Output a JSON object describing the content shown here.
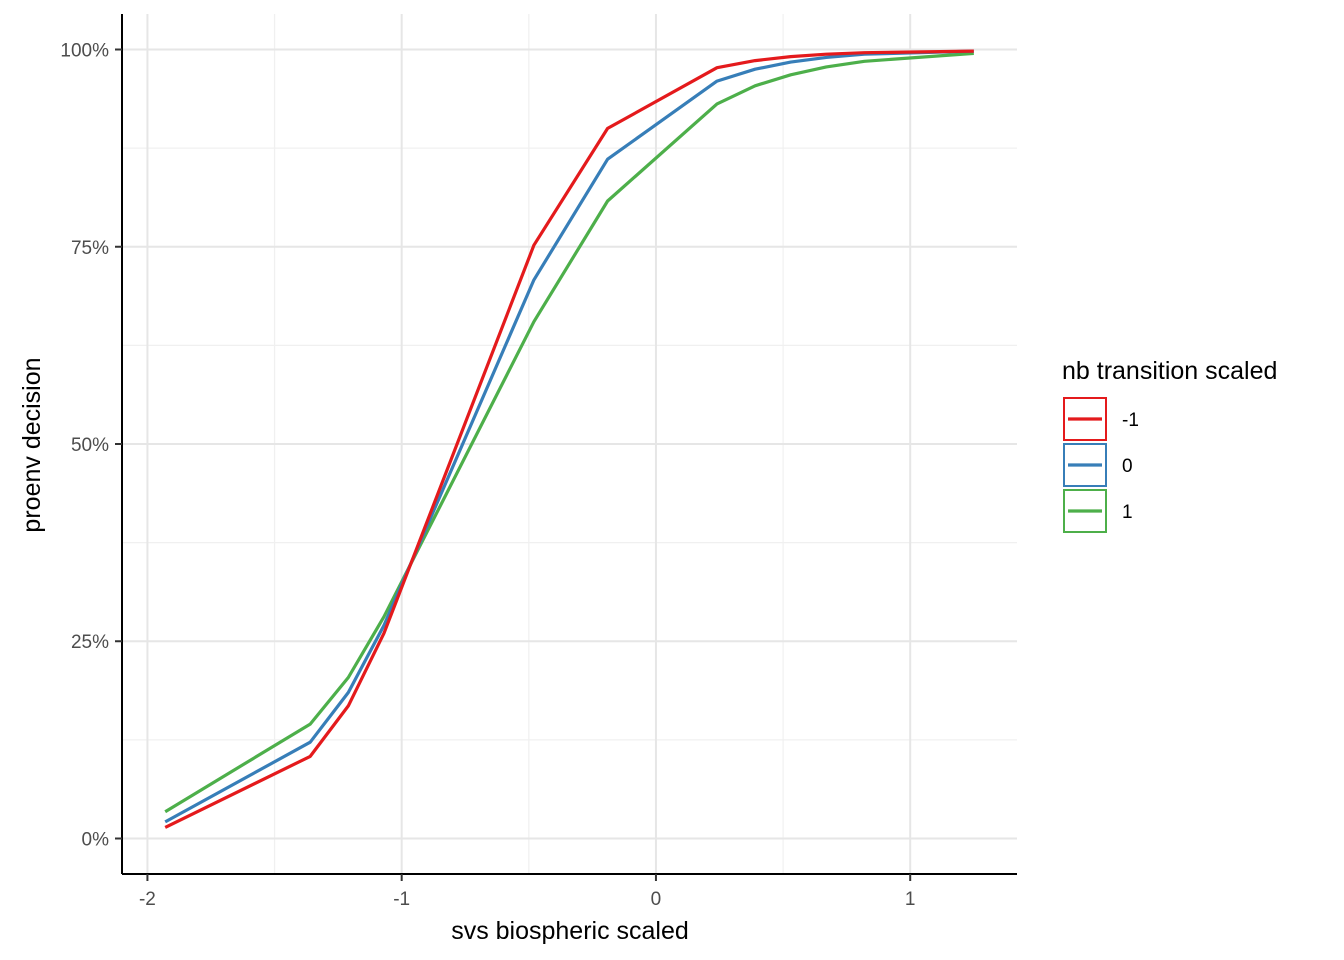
{
  "chart_data": {
    "type": "line",
    "xlabel": "svs biospheric scaled",
    "ylabel": "proenv decision",
    "xlim": [
      -2.1,
      1.42
    ],
    "ylim": [
      -0.045,
      1.045
    ],
    "x_ticks": [
      -2,
      -1,
      0,
      1
    ],
    "x_tick_labels": [
      "-2",
      "-1",
      "0",
      "1"
    ],
    "y_ticks": [
      0,
      0.25,
      0.5,
      0.75,
      1
    ],
    "y_tick_labels": [
      "0%",
      "25%",
      "50%",
      "75%",
      "100%"
    ],
    "grid": true,
    "legend": {
      "title": "nb transition scaled",
      "placement": "right"
    },
    "series": [
      {
        "name": "-1",
        "color": "#e41a1c",
        "x": [
          -1.93,
          -1.36,
          -1.21,
          -1.07,
          -0.48,
          -0.19,
          0.24,
          0.39,
          0.53,
          0.67,
          0.82,
          1.25
        ],
        "y": [
          0.014,
          0.104,
          0.168,
          0.26,
          0.752,
          0.9,
          0.977,
          0.986,
          0.991,
          0.994,
          0.996,
          0.998
        ]
      },
      {
        "name": "0",
        "color": "#377eb8",
        "x": [
          -1.93,
          -1.36,
          -1.21,
          -1.07,
          -0.48,
          -0.19,
          0.24,
          0.39,
          0.53,
          0.67,
          0.82,
          1.25
        ],
        "y": [
          0.021,
          0.122,
          0.185,
          0.27,
          0.708,
          0.861,
          0.96,
          0.975,
          0.984,
          0.99,
          0.994,
          0.998
        ]
      },
      {
        "name": "1",
        "color": "#4daf4a",
        "x": [
          -1.93,
          -1.36,
          -1.21,
          -1.07,
          -0.48,
          -0.19,
          0.24,
          0.39,
          0.53,
          0.67,
          0.82,
          1.25
        ],
        "y": [
          0.034,
          0.145,
          0.204,
          0.281,
          0.655,
          0.808,
          0.931,
          0.954,
          0.968,
          0.978,
          0.985,
          0.995
        ]
      }
    ]
  }
}
